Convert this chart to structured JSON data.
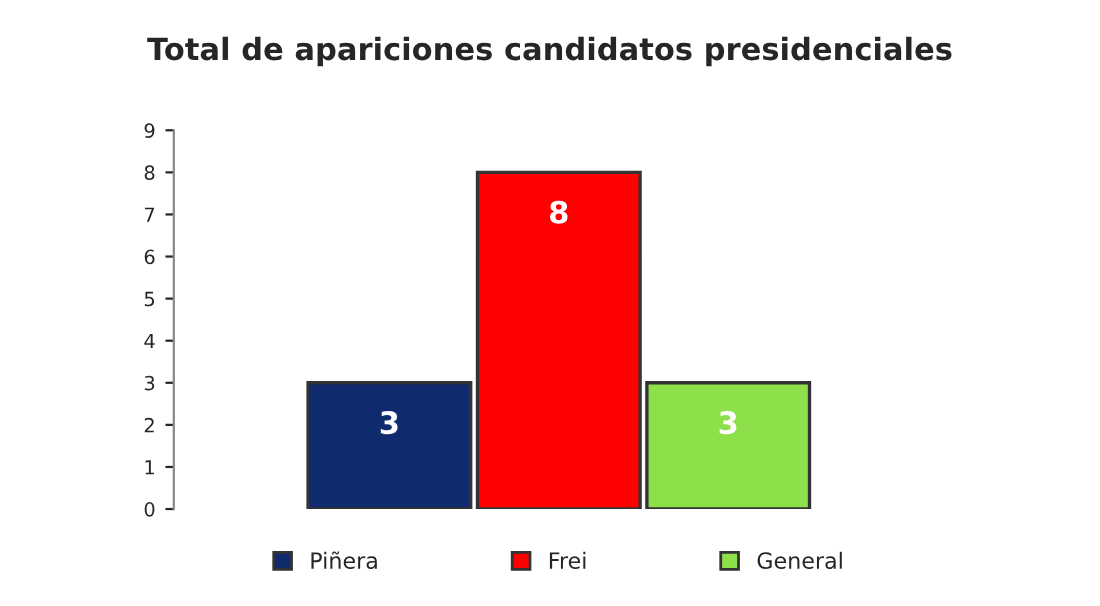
{
  "chart_data": {
    "type": "bar",
    "title": "Total de apariciones candidatos presidenciales",
    "categories": [
      null
    ],
    "series": [
      {
        "name": "Piñera",
        "color": "#0f2b6e",
        "values": [
          3
        ]
      },
      {
        "name": "Frei",
        "color": "#ff0000",
        "values": [
          8
        ]
      },
      {
        "name": "General",
        "color": "#8ee04a",
        "values": [
          3
        ]
      }
    ],
    "ylim": [
      0,
      9
    ],
    "yticks": [
      0,
      1,
      2,
      3,
      4,
      5,
      6,
      7,
      8,
      9
    ],
    "grid": false,
    "legend": "bottom",
    "data_labels": true
  }
}
